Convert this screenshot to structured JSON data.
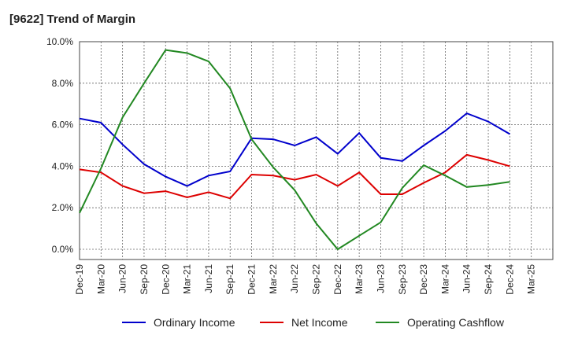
{
  "chart_data": {
    "type": "line",
    "title": "[9622]  Trend of Margin",
    "xlabel": "",
    "ylabel": "",
    "categories": [
      "Dec-19",
      "Mar-20",
      "Jun-20",
      "Sep-20",
      "Dec-20",
      "Mar-21",
      "Jun-21",
      "Sep-21",
      "Dec-21",
      "Mar-22",
      "Jun-22",
      "Sep-22",
      "Dec-22",
      "Mar-23",
      "Jun-23",
      "Sep-23",
      "Dec-23",
      "Mar-24",
      "Jun-24",
      "Sep-24",
      "Dec-24",
      "Mar-25"
    ],
    "y_tick_labels": [
      "0.0%",
      "2.0%",
      "4.0%",
      "6.0%",
      "8.0%",
      "10.0%"
    ],
    "y_ticks": [
      0,
      2,
      4,
      6,
      8,
      10
    ],
    "ylim": [
      -0.5,
      10
    ],
    "grid": true,
    "legend_position": "bottom",
    "series": [
      {
        "name": "Ordinary Income",
        "color": "#0000cc",
        "values": [
          6.3,
          6.1,
          5.05,
          4.1,
          3.5,
          3.05,
          3.55,
          3.75,
          5.35,
          5.3,
          5.0,
          5.4,
          4.6,
          5.6,
          4.4,
          4.25,
          5.0,
          5.7,
          6.55,
          6.15,
          5.55,
          null
        ]
      },
      {
        "name": "Net Income",
        "color": "#dd0000",
        "values": [
          3.85,
          3.7,
          3.05,
          2.7,
          2.8,
          2.5,
          2.75,
          2.45,
          3.6,
          3.55,
          3.35,
          3.6,
          3.05,
          3.7,
          2.65,
          2.65,
          3.2,
          3.7,
          4.55,
          4.3,
          4.0,
          null
        ]
      },
      {
        "name": "Operating Cashflow",
        "color": "#228822",
        "values": [
          1.75,
          3.9,
          6.35,
          8.0,
          9.6,
          9.45,
          9.05,
          7.75,
          5.3,
          3.95,
          2.85,
          1.25,
          0.0,
          0.65,
          1.3,
          2.95,
          4.05,
          3.55,
          3.0,
          3.1,
          3.25,
          null
        ]
      }
    ]
  }
}
